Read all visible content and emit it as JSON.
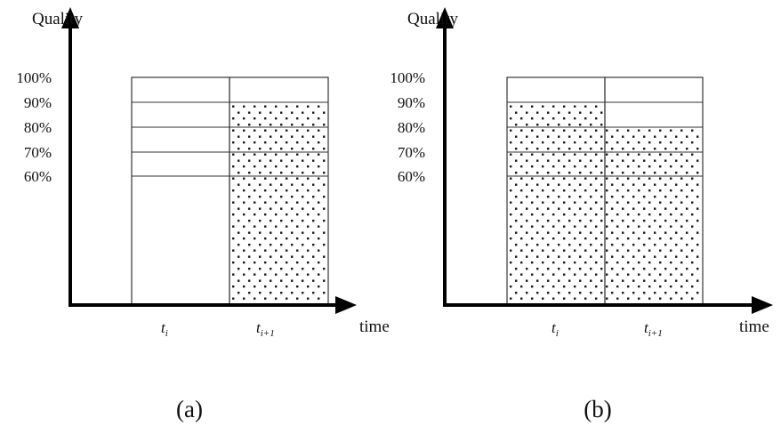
{
  "panels": [
    {
      "caption": "(a)",
      "y_axis_title": "Quality",
      "x_axis_title": "time",
      "y_ticks": [
        "100%",
        "90%",
        "80%",
        "70%",
        "60%"
      ],
      "quality_levels": [
        100,
        90,
        80,
        70,
        60
      ],
      "columns": [
        {
          "label": "t",
          "sub": "i",
          "filled_to": 0
        },
        {
          "label": "t",
          "sub": "i+1",
          "filled_to": 90
        }
      ]
    },
    {
      "caption": "(b)",
      "y_axis_title": "Quality",
      "x_axis_title": "time",
      "y_ticks": [
        "100%",
        "90%",
        "80%",
        "70%",
        "60%"
      ],
      "quality_levels": [
        100,
        90,
        80,
        70,
        60
      ],
      "columns": [
        {
          "label": "t",
          "sub": "i",
          "filled_to": 90
        },
        {
          "label": "t",
          "sub": "i+1",
          "filled_to": 80
        }
      ]
    }
  ],
  "colors": {
    "axis": "#000000",
    "fill_dot": "#1a1a1a",
    "background": "#ffffff"
  }
}
